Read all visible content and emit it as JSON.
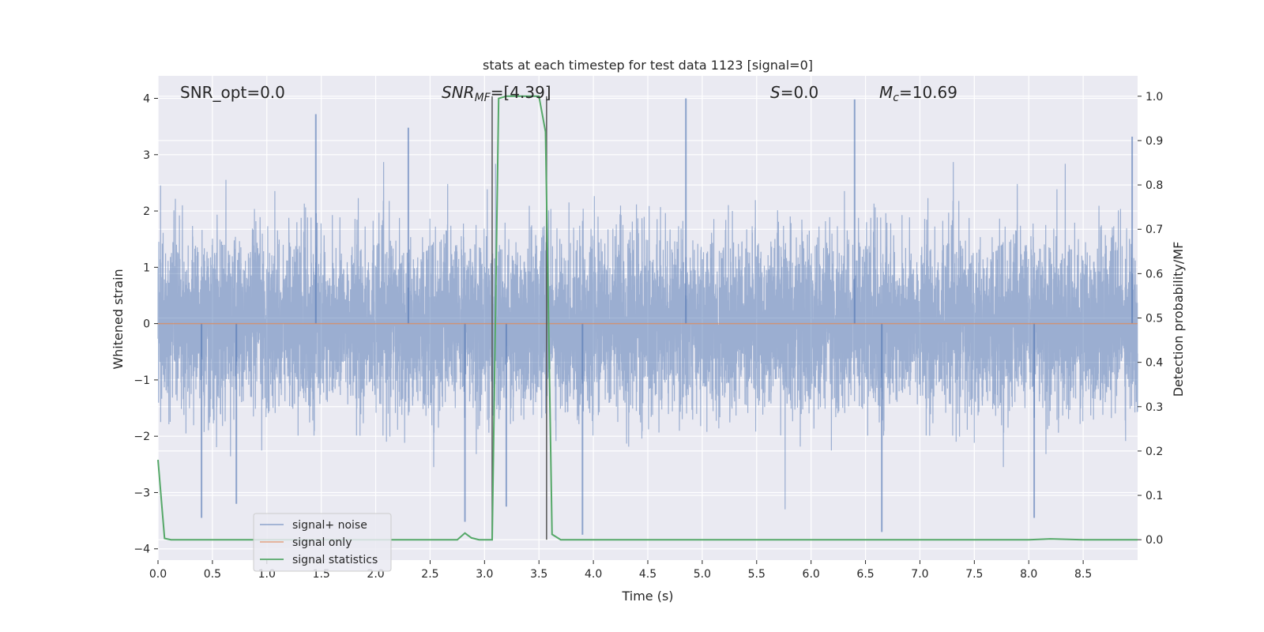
{
  "chart_data": {
    "type": "line",
    "title": "stats at each timestep for test data 1123 [signal=0]",
    "xlabel": "Time (s)",
    "ylabel": "Whitened strain",
    "ylabel_right": "Detection probability/MF",
    "xlim": [
      0,
      9.0
    ],
    "ylim": [
      -4.2,
      4.4
    ],
    "ylim_right": [
      -0.046,
      1.046
    ],
    "x_ticks": [
      "0.0",
      "0.5",
      "1.0",
      "1.5",
      "2.0",
      "2.5",
      "3.0",
      "3.5",
      "4.0",
      "4.5",
      "5.0",
      "5.5",
      "6.0",
      "6.5",
      "7.0",
      "7.5",
      "8.0",
      "8.5"
    ],
    "x_tick_values": [
      0,
      0.5,
      1.0,
      1.5,
      2.0,
      2.5,
      3.0,
      3.5,
      4.0,
      4.5,
      5.0,
      5.5,
      6.0,
      6.5,
      7.0,
      7.5,
      8.0,
      8.5
    ],
    "y_ticks": [
      "−4",
      "−3",
      "−2",
      "−1",
      "0",
      "1",
      "2",
      "3",
      "4"
    ],
    "y_tick_values": [
      -4,
      -3,
      -2,
      -1,
      0,
      1,
      2,
      3,
      4
    ],
    "y_right_ticks": [
      "0.0",
      "0.1",
      "0.2",
      "0.3",
      "0.4",
      "0.5",
      "0.6",
      "0.7",
      "0.8",
      "0.9",
      "1.0"
    ],
    "y_right_tick_values": [
      0,
      0.1,
      0.2,
      0.3,
      0.4,
      0.5,
      0.6,
      0.7,
      0.8,
      0.9,
      1.0
    ],
    "grid": true,
    "legend_position": "lower-left",
    "annotations": {
      "snr_opt": "SNR_opt=0.0",
      "snr_mf_main": "SNR",
      "snr_mf_sub": "MF",
      "snr_mf_value": "=[4.39]",
      "s_main": "S",
      "s_value": "=0.0",
      "mc_main": "M",
      "mc_sub": "c",
      "mc_value": "=10.69"
    },
    "vertical_lines": [
      3.07,
      3.57
    ],
    "noise_spikes": [
      [
        0.4,
        -3.45
      ],
      [
        0.72,
        -3.2
      ],
      [
        1.45,
        3.72
      ],
      [
        2.3,
        3.48
      ],
      [
        2.82,
        -3.52
      ],
      [
        3.2,
        -3.25
      ],
      [
        3.9,
        -3.75
      ],
      [
        4.85,
        4.0
      ],
      [
        6.4,
        3.98
      ],
      [
        6.65,
        -3.7
      ],
      [
        8.05,
        -3.45
      ],
      [
        8.95,
        3.32
      ]
    ],
    "series": [
      {
        "name": "signal+ noise",
        "color": "#4c72b0",
        "kind": "noise",
        "amplitude_std": 0.75,
        "points": 9000
      },
      {
        "name": "signal only",
        "color": "#dd8452",
        "kind": "line",
        "x": [
          0,
          9.0
        ],
        "y": [
          0,
          0
        ]
      },
      {
        "name": "signal statistics",
        "color": "#55a868",
        "kind": "line_right",
        "x": [
          0.0,
          0.06,
          0.12,
          0.5,
          1.0,
          1.5,
          2.0,
          2.5,
          2.75,
          2.82,
          2.88,
          2.95,
          3.05,
          3.07,
          3.13,
          3.2,
          3.3,
          3.4,
          3.5,
          3.56,
          3.62,
          3.7,
          4.0,
          5.0,
          6.0,
          7.0,
          8.0,
          8.2,
          8.5,
          9.0
        ],
        "y": [
          0.18,
          0.003,
          0.0,
          0.0,
          0.0,
          0.0,
          0.0,
          0.0,
          0.0,
          0.015,
          0.004,
          0.0,
          0.0,
          0.0,
          0.995,
          1.0,
          1.0,
          1.0,
          1.0,
          0.92,
          0.012,
          0.0,
          0.0,
          0.0,
          0.0,
          0.0,
          0.0,
          0.002,
          0.0,
          0.0
        ]
      }
    ]
  }
}
